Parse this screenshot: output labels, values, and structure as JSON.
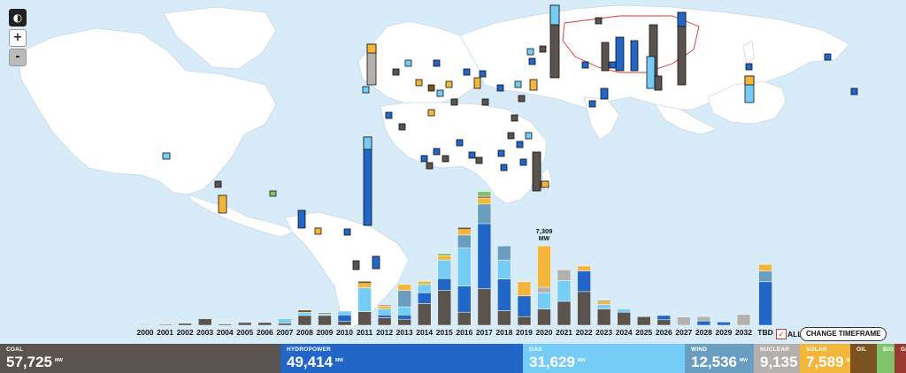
{
  "map_controls": {
    "globe": "◐",
    "zoom_in": "+",
    "zoom_out": "-"
  },
  "colors": {
    "coal": "#5a534e",
    "hydropower": "#2266c8",
    "gas": "#75cdf6",
    "wind": "#6a9ec0",
    "nuclear": "#b3b0ad",
    "solar": "#f3b53a",
    "oil": "#7b5220",
    "bio": "#7fc46a",
    "geo": "#9a3a32"
  },
  "annotation": {
    "value": "7,309",
    "unit": "MW"
  },
  "timeline": {
    "all_label": "ALL",
    "all_checked": "✓",
    "change_button": "CHANGE TIMEFRAME"
  },
  "legend": [
    {
      "key": "coal",
      "name": "COAL",
      "value": "57,725",
      "unit": "MW"
    },
    {
      "key": "hydropower",
      "name": "HYDROPOWER",
      "value": "49,414",
      "unit": "MW"
    },
    {
      "key": "gas",
      "name": "GAS",
      "value": "31,629",
      "unit": "MW"
    },
    {
      "key": "wind",
      "name": "WIND",
      "value": "12,536",
      "unit": "MW"
    },
    {
      "key": "nuclear",
      "name": "NUCLEAR",
      "value": "9,135",
      "unit": "MW"
    },
    {
      "key": "solar",
      "name": "SOLAR",
      "value": "7,589",
      "unit": "MW"
    },
    {
      "key": "oil",
      "name": "OIL",
      "value": "",
      "unit": ""
    },
    {
      "key": "bio",
      "name": "BIO",
      "value": "",
      "unit": ""
    },
    {
      "key": "geo",
      "name": "GE",
      "value": "",
      "unit": ""
    }
  ],
  "chart_data": {
    "type": "bar",
    "stacked": true,
    "title": "",
    "xlabel": "",
    "ylabel": "",
    "categories": [
      "2000",
      "2001",
      "2002",
      "2003",
      "2004",
      "2005",
      "2006",
      "2007",
      "2008",
      "2009",
      "2010",
      "2011",
      "2012",
      "2013",
      "2014",
      "2015",
      "2016",
      "2017",
      "2018",
      "2019",
      "2020",
      "2021",
      "2022",
      "2023",
      "2024",
      "2025",
      "2026",
      "2027",
      "2028",
      "2029",
      "2032",
      "TBD"
    ],
    "series": [
      {
        "name": "COAL",
        "key": "coal",
        "values": [
          60,
          80,
          180,
          600,
          120,
          250,
          250,
          200,
          900,
          900,
          350,
          1250,
          700,
          550,
          2000,
          3200,
          1200,
          3350,
          1350,
          800,
          1500,
          2200,
          3100,
          1500,
          1200,
          800,
          500,
          0,
          0,
          0,
          0,
          0
        ]
      },
      {
        "name": "HYDROPOWER",
        "key": "hydropower",
        "values": [
          0,
          0,
          0,
          0,
          50,
          0,
          0,
          0,
          0,
          0,
          600,
          0,
          250,
          400,
          1000,
          1100,
          2400,
          6000,
          2900,
          1900,
          0,
          0,
          1900,
          0,
          0,
          0,
          400,
          0,
          400,
          300,
          0,
          4000
        ]
      },
      {
        "name": "GAS",
        "key": "gas",
        "values": [
          0,
          0,
          0,
          0,
          0,
          100,
          0,
          400,
          300,
          150,
          350,
          2200,
          550,
          750,
          750,
          1700,
          3500,
          0,
          1750,
          0,
          1500,
          1900,
          0,
          400,
          300,
          0,
          0,
          0,
          0,
          0,
          0,
          0
        ]
      },
      {
        "name": "WIND",
        "key": "wind",
        "values": [
          0,
          0,
          0,
          0,
          0,
          0,
          0,
          0,
          0,
          0,
          0,
          0,
          0,
          1500,
          0,
          0,
          1200,
          1800,
          1300,
          0,
          0,
          0,
          0,
          0,
          0,
          0,
          0,
          0,
          0,
          0,
          0,
          1000
        ]
      },
      {
        "name": "NUCLEAR",
        "key": "nuclear",
        "values": [
          0,
          0,
          0,
          0,
          0,
          0,
          0,
          0,
          0,
          0,
          0,
          0,
          0,
          0,
          0,
          0,
          0,
          0,
          0,
          0,
          500,
          1000,
          0,
          0,
          0,
          0,
          0,
          750,
          400,
          0,
          1000,
          0
        ]
      },
      {
        "name": "SOLAR",
        "key": "solar",
        "values": [
          0,
          0,
          0,
          0,
          0,
          0,
          0,
          0,
          0,
          0,
          0,
          400,
          250,
          550,
          300,
          400,
          500,
          550,
          0,
          1300,
          3800,
          0,
          450,
          300,
          0,
          0,
          0,
          0,
          0,
          0,
          0,
          600
        ]
      },
      {
        "name": "OIL",
        "key": "oil",
        "values": [
          0,
          0,
          0,
          0,
          0,
          0,
          0,
          0,
          200,
          100,
          0,
          200,
          100,
          0,
          0,
          0,
          200,
          150,
          0,
          0,
          0,
          0,
          0,
          100,
          0,
          0,
          0,
          0,
          0,
          0,
          0,
          0
        ]
      },
      {
        "name": "BIO",
        "key": "bio",
        "values": [
          0,
          0,
          0,
          0,
          0,
          0,
          0,
          0,
          0,
          0,
          0,
          0,
          0,
          0,
          0,
          200,
          0,
          450,
          0,
          0,
          0,
          0,
          0,
          0,
          0,
          0,
          0,
          0,
          0,
          0,
          0,
          0
        ]
      },
      {
        "name": "GE",
        "key": "geo",
        "values": [
          0,
          0,
          0,
          0,
          0,
          0,
          0,
          0,
          0,
          0,
          0,
          0,
          0,
          0,
          0,
          0,
          0,
          0,
          0,
          0,
          0,
          0,
          0,
          0,
          0,
          0,
          0,
          0,
          0,
          0,
          0,
          0
        ]
      }
    ],
    "annotations": [
      {
        "category": "2020",
        "text": "7,309 MW"
      }
    ],
    "ylim": [
      0,
      13000
    ],
    "grid": false,
    "legend": "bottom"
  }
}
